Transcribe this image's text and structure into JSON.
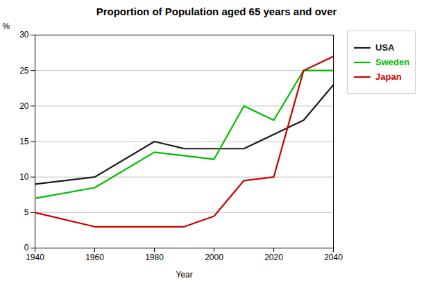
{
  "chart_data": {
    "type": "line",
    "title": "Proportion of Population aged 65 years and over",
    "xlabel": "Year",
    "ylabel": "%",
    "x": [
      1940,
      1960,
      1980,
      1990,
      2000,
      2010,
      2020,
      2030,
      2040
    ],
    "series": [
      {
        "name": "USA",
        "color": "#1a1a1a",
        "values": [
          9,
          10,
          15,
          14,
          14,
          14,
          16,
          18,
          23
        ]
      },
      {
        "name": "Sweden",
        "color": "#00bb00",
        "values": [
          7,
          8.5,
          13.5,
          13,
          12.5,
          20,
          18,
          25,
          25
        ]
      },
      {
        "name": "Japan",
        "color": "#cc0000",
        "values": [
          5,
          3,
          3,
          3,
          4.5,
          9.5,
          10,
          25,
          27
        ]
      }
    ],
    "xlim": [
      1940,
      2040
    ],
    "ylim": [
      0,
      30
    ],
    "xticks": [
      1940,
      1960,
      1980,
      2000,
      2020,
      2040
    ],
    "yticks": [
      0,
      5,
      10,
      15,
      20,
      25,
      30
    ],
    "grid": true,
    "legend": "right"
  }
}
